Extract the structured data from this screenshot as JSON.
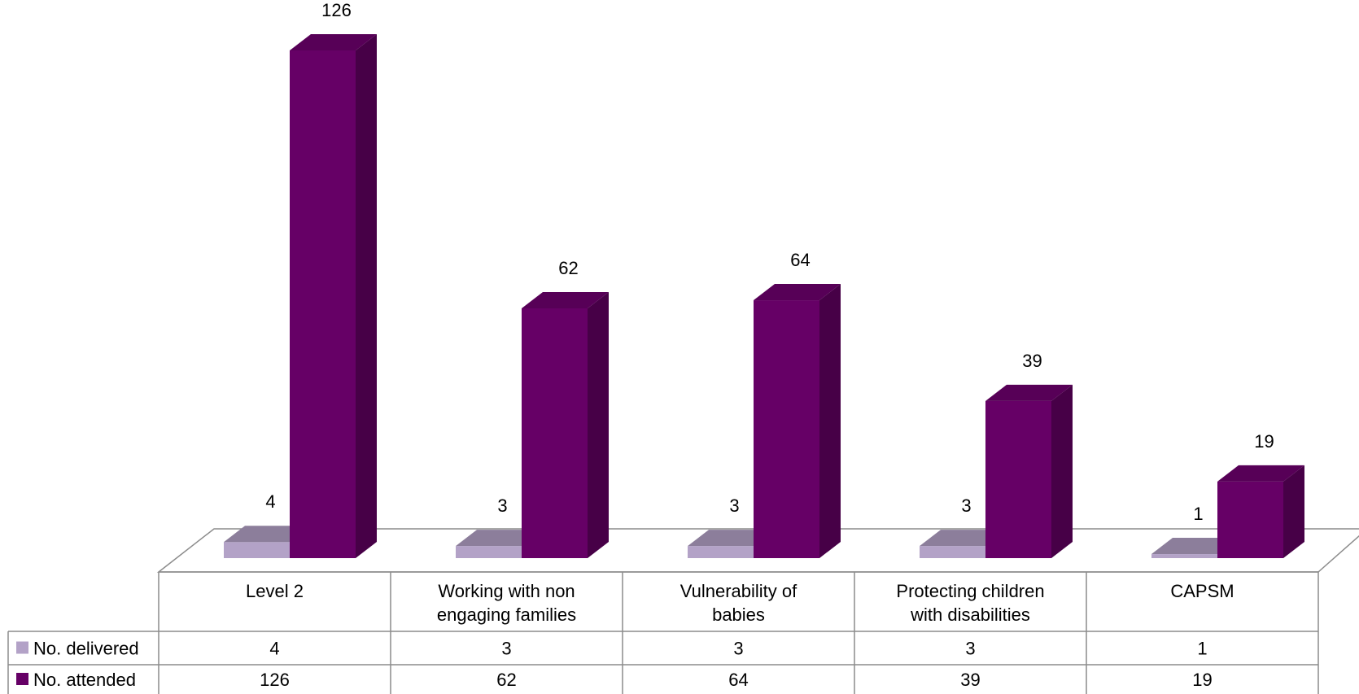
{
  "chart_data": {
    "type": "bar",
    "title": "",
    "xlabel": "",
    "ylabel": "",
    "ylim": [
      0,
      126
    ],
    "grid": false,
    "legend_placement": "data-table-left",
    "categories": [
      "Level 2",
      "Working with non engaging families",
      "Vulnerability of babies",
      "Protecting children with disabilities",
      "CAPSM"
    ],
    "category_lines": [
      [
        "Level 2"
      ],
      [
        "Working with non",
        "engaging families"
      ],
      [
        "Vulnerability of",
        "babies"
      ],
      [
        "Protecting children",
        "with disabilities"
      ],
      [
        "CAPSM"
      ]
    ],
    "series": [
      {
        "name": "No. delivered",
        "values": [
          4,
          3,
          3,
          3,
          1
        ],
        "color": "#B3A2C7"
      },
      {
        "name": "No. attended",
        "values": [
          126,
          62,
          64,
          39,
          19
        ],
        "color": "#660066"
      }
    ]
  }
}
